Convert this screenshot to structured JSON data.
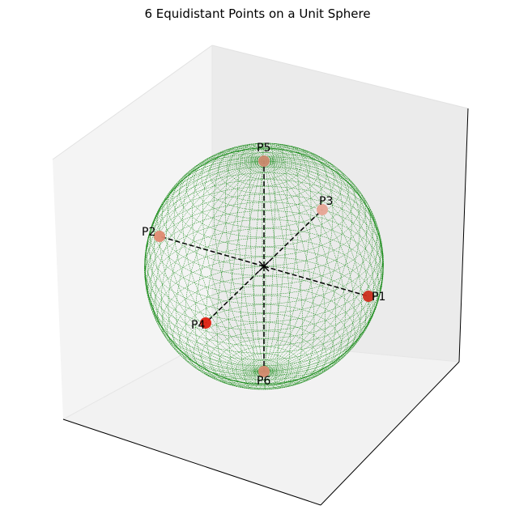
{
  "chart_data": {
    "type": "scatter",
    "title": "6 Equidistant Points on a Unit Sphere",
    "xlabel": "",
    "ylabel": "",
    "zlabel": "",
    "grid": false,
    "sphere": {
      "radius": 1,
      "wireframe_color": "#1a8c1a"
    },
    "center_marker": "x",
    "points": [
      {
        "name": "P1",
        "x": 1,
        "y": 0,
        "z": 0,
        "color": "#cc2e1e"
      },
      {
        "name": "P2",
        "x": -1,
        "y": 0,
        "z": 0,
        "color": "#e08a72"
      },
      {
        "name": "P3",
        "x": 0,
        "y": 1,
        "z": 0,
        "color": "#e8a596"
      },
      {
        "name": "P4",
        "x": 0,
        "y": -1,
        "z": 0,
        "color": "#e02010"
      },
      {
        "name": "P5",
        "x": 0,
        "y": 0,
        "z": 1,
        "color": "#cc8a6e"
      },
      {
        "name": "P6",
        "x": 0,
        "y": 0,
        "z": -1,
        "color": "#d68a70"
      }
    ]
  }
}
